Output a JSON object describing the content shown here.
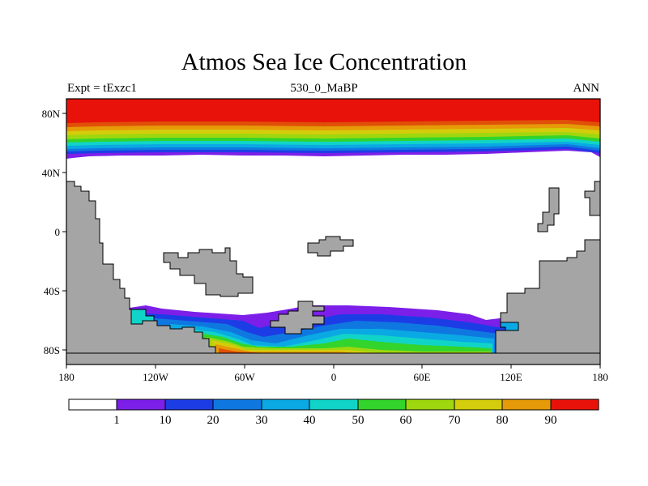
{
  "title": "Atmos Sea Ice Concentration",
  "subtitle_left": "Expt = tExzc1",
  "subtitle_center": "530_0_MaBP",
  "subtitle_right": "ANN",
  "x_ticks": [
    "180",
    "120W",
    "60W",
    "0",
    "60E",
    "120E",
    "180"
  ],
  "y_ticks": [
    "80N",
    "40N",
    "0",
    "40S",
    "80S"
  ],
  "colorbar": {
    "labels": [
      "1",
      "10",
      "20",
      "30",
      "40",
      "50",
      "60",
      "70",
      "80",
      "90"
    ],
    "colors": [
      "#ffffff",
      "#7c1fe8",
      "#1c3de6",
      "#0f78e0",
      "#0aa9e3",
      "#11d4c8",
      "#33d42b",
      "#9fd70f",
      "#d3cd0c",
      "#e69a08",
      "#e05008",
      "#e8120a"
    ]
  },
  "land_color": "#a5a5a5"
}
